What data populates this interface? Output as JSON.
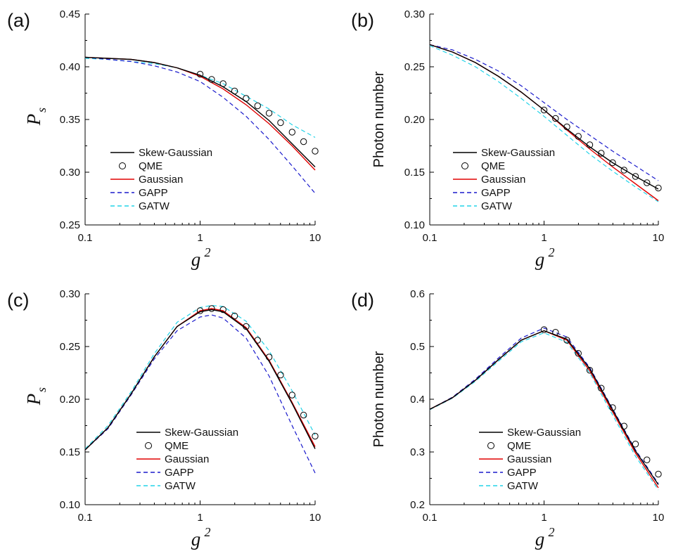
{
  "figure": {
    "colors": {
      "Skew-Gaussian": "#000000",
      "QME": "#000000",
      "Gaussian": "#e00000",
      "GAPP": "#1a1acc",
      "GATW": "#22d3e8"
    }
  },
  "chart_data": [
    {
      "panel": "(a)",
      "type": "line",
      "xscale": "log",
      "xlim": [
        0.1,
        10
      ],
      "ylim": [
        0.25,
        0.45
      ],
      "xticks": [
        0.1,
        1,
        10
      ],
      "xtick_labels": [
        "0.1",
        "1",
        "10"
      ],
      "yticks": [
        0.25,
        0.3,
        0.35,
        0.4,
        0.45
      ],
      "ytick_labels": [
        "0.25",
        "0.30",
        "0.35",
        "0.40",
        "0.45"
      ],
      "xlabel": "g",
      "xlabel_sup": "2",
      "ylabel": "P",
      "ylabel_sub": "s",
      "legend_position": "lower-left",
      "x": [
        0.1,
        0.158,
        0.251,
        0.398,
        0.631,
        1,
        1.585,
        2.512,
        3.981,
        6.31,
        10
      ],
      "series": [
        {
          "name": "Skew-Gaussian",
          "style": "solid",
          "values": [
            0.409,
            0.408,
            0.407,
            0.404,
            0.399,
            0.392,
            0.381,
            0.367,
            0.349,
            0.327,
            0.305
          ]
        },
        {
          "name": "Gaussian",
          "style": "solid",
          "values": [
            0.409,
            0.408,
            0.407,
            0.404,
            0.399,
            0.391,
            0.379,
            0.364,
            0.346,
            0.325,
            0.302
          ]
        },
        {
          "name": "GAPP",
          "style": "dashed",
          "values": [
            0.409,
            0.407,
            0.405,
            0.401,
            0.395,
            0.386,
            0.371,
            0.353,
            0.331,
            0.306,
            0.28
          ]
        },
        {
          "name": "GATW",
          "style": "dashed",
          "values": [
            0.408,
            0.407,
            0.405,
            0.403,
            0.399,
            0.392,
            0.384,
            0.372,
            0.36,
            0.345,
            0.333
          ]
        },
        {
          "name": "QME",
          "style": "markers",
          "x": [
            1,
            1.26,
            1.585,
            1.995,
            2.512,
            3.162,
            3.981,
            5.012,
            6.31,
            7.943,
            10
          ],
          "values": [
            0.393,
            0.388,
            0.384,
            0.377,
            0.37,
            0.363,
            0.356,
            0.347,
            0.338,
            0.329,
            0.32
          ]
        }
      ]
    },
    {
      "panel": "(b)",
      "type": "line",
      "xscale": "log",
      "xlim": [
        0.1,
        10
      ],
      "ylim": [
        0.1,
        0.3
      ],
      "xticks": [
        0.1,
        1,
        10
      ],
      "xtick_labels": [
        "0.1",
        "1",
        "10"
      ],
      "yticks": [
        0.1,
        0.15,
        0.2,
        0.25,
        0.3
      ],
      "ytick_labels": [
        "0.10",
        "0.15",
        "0.20",
        "0.25",
        "0.30"
      ],
      "xlabel": "g",
      "xlabel_sup": "2",
      "ylabel": "Photon number",
      "ylabel_sub": "",
      "legend_position": "lower-left",
      "x": [
        0.1,
        0.158,
        0.251,
        0.398,
        0.631,
        1,
        1.585,
        2.512,
        3.981,
        6.31,
        10
      ],
      "series": [
        {
          "name": "Skew-Gaussian",
          "style": "solid",
          "values": [
            0.271,
            0.264,
            0.254,
            0.241,
            0.226,
            0.209,
            0.191,
            0.174,
            0.159,
            0.146,
            0.134
          ]
        },
        {
          "name": "Gaussian",
          "style": "solid",
          "values": [
            0.271,
            0.264,
            0.254,
            0.241,
            0.226,
            0.209,
            0.19,
            0.172,
            0.155,
            0.139,
            0.123
          ]
        },
        {
          "name": "GAPP",
          "style": "dashed",
          "values": [
            0.271,
            0.266,
            0.257,
            0.246,
            0.232,
            0.216,
            0.2,
            0.185,
            0.17,
            0.156,
            0.142
          ]
        },
        {
          "name": "GATW",
          "style": "dashed",
          "values": [
            0.27,
            0.261,
            0.25,
            0.236,
            0.22,
            0.203,
            0.185,
            0.167,
            0.151,
            0.136,
            0.122
          ]
        },
        {
          "name": "QME",
          "style": "markers",
          "x": [
            1,
            1.26,
            1.585,
            1.995,
            2.512,
            3.162,
            3.981,
            5.012,
            6.31,
            7.943,
            10
          ],
          "values": [
            0.209,
            0.201,
            0.193,
            0.184,
            0.176,
            0.168,
            0.159,
            0.152,
            0.146,
            0.14,
            0.135
          ]
        }
      ]
    },
    {
      "panel": "(c)",
      "type": "line",
      "xscale": "log",
      "xlim": [
        0.1,
        10
      ],
      "ylim": [
        0.1,
        0.3
      ],
      "xticks": [
        0.1,
        1,
        10
      ],
      "xtick_labels": [
        "0.1",
        "1",
        "10"
      ],
      "yticks": [
        0.1,
        0.15,
        0.2,
        0.25,
        0.3
      ],
      "ytick_labels": [
        "0.10",
        "0.15",
        "0.20",
        "0.25",
        "0.30"
      ],
      "xlabel": "g",
      "xlabel_sup": "2",
      "ylabel": "P",
      "ylabel_sub": "s",
      "legend_position": "lower-center",
      "x": [
        0.1,
        0.158,
        0.251,
        0.398,
        0.631,
        1,
        1.259,
        1.585,
        2.512,
        3.981,
        6.31,
        10
      ],
      "series": [
        {
          "name": "Skew-Gaussian",
          "style": "solid",
          "values": [
            0.152,
            0.173,
            0.205,
            0.24,
            0.269,
            0.283,
            0.285,
            0.283,
            0.267,
            0.236,
            0.196,
            0.153
          ]
        },
        {
          "name": "Gaussian",
          "style": "solid",
          "values": [
            0.152,
            0.173,
            0.205,
            0.24,
            0.269,
            0.284,
            0.286,
            0.284,
            0.268,
            0.237,
            0.197,
            0.155
          ]
        },
        {
          "name": "GAPP",
          "style": "dashed",
          "values": [
            0.152,
            0.172,
            0.204,
            0.238,
            0.265,
            0.278,
            0.28,
            0.277,
            0.258,
            0.222,
            0.175,
            0.13
          ]
        },
        {
          "name": "GATW",
          "style": "dashed",
          "values": [
            0.153,
            0.175,
            0.207,
            0.243,
            0.273,
            0.287,
            0.289,
            0.288,
            0.274,
            0.246,
            0.208,
            0.166
          ]
        },
        {
          "name": "QME",
          "style": "markers",
          "x": [
            1,
            1.26,
            1.585,
            1.995,
            2.512,
            3.162,
            3.981,
            5.012,
            6.31,
            7.943,
            10
          ],
          "values": [
            0.284,
            0.286,
            0.285,
            0.279,
            0.269,
            0.256,
            0.24,
            0.223,
            0.204,
            0.185,
            0.165
          ]
        }
      ]
    },
    {
      "panel": "(d)",
      "type": "line",
      "xscale": "log",
      "xlim": [
        0.1,
        10
      ],
      "ylim": [
        0.2,
        0.6
      ],
      "xticks": [
        0.1,
        1,
        10
      ],
      "xtick_labels": [
        "0.1",
        "1",
        "10"
      ],
      "yticks": [
        0.2,
        0.3,
        0.4,
        0.5,
        0.6
      ],
      "ytick_labels": [
        "0.2",
        "0.3",
        "0.4",
        "0.5",
        "0.6"
      ],
      "xlabel": "g",
      "xlabel_sup": "2",
      "ylabel": "Photon number",
      "ylabel_sub": "",
      "legend_position": "lower-center",
      "x": [
        0.1,
        0.158,
        0.251,
        0.398,
        0.631,
        1,
        1.585,
        2.512,
        3.981,
        6.31,
        10
      ],
      "series": [
        {
          "name": "Skew-Gaussian",
          "style": "solid",
          "values": [
            0.381,
            0.403,
            0.436,
            0.475,
            0.512,
            0.53,
            0.514,
            0.458,
            0.38,
            0.302,
            0.238
          ]
        },
        {
          "name": "Gaussian",
          "style": "solid",
          "values": [
            0.381,
            0.403,
            0.436,
            0.475,
            0.512,
            0.53,
            0.512,
            0.454,
            0.376,
            0.298,
            0.232
          ]
        },
        {
          "name": "GAPP",
          "style": "dashed",
          "values": [
            0.381,
            0.404,
            0.438,
            0.478,
            0.516,
            0.535,
            0.518,
            0.46,
            0.382,
            0.304,
            0.24
          ]
        },
        {
          "name": "GATW",
          "style": "dashed",
          "values": [
            0.38,
            0.402,
            0.434,
            0.472,
            0.509,
            0.526,
            0.508,
            0.45,
            0.37,
            0.292,
            0.228
          ]
        },
        {
          "name": "QME",
          "style": "markers",
          "x": [
            1,
            1.26,
            1.585,
            1.995,
            2.512,
            3.162,
            3.981,
            5.012,
            6.31,
            7.943,
            10
          ],
          "values": [
            0.532,
            0.527,
            0.512,
            0.487,
            0.455,
            0.421,
            0.384,
            0.349,
            0.315,
            0.285,
            0.258
          ]
        }
      ]
    }
  ]
}
